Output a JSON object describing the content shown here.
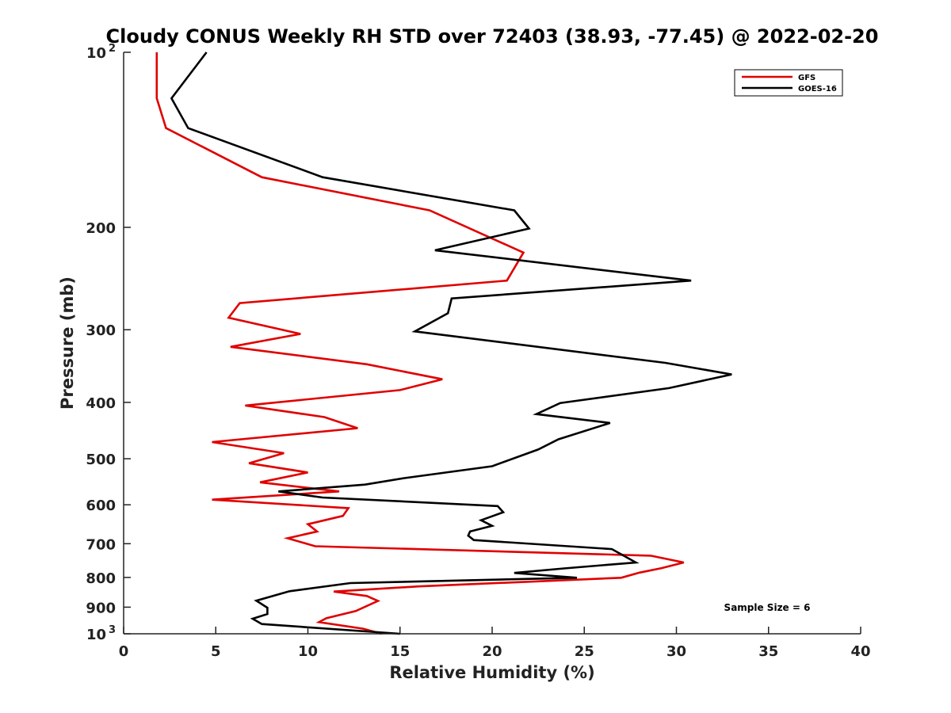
{
  "chart_data": {
    "type": "line",
    "title": "Cloudy CONUS Weekly RH STD over 72403 (38.93, -77.45) @ 2022-02-20",
    "xlabel": "Relative Humidity (%)",
    "ylabel": "Pressure (mb)",
    "xlim": [
      0,
      40
    ],
    "ylim": [
      100,
      1000
    ],
    "y_scale": "log",
    "y_reversed": true,
    "grid": false,
    "legend_position": "top-right",
    "x_ticks": [
      "0",
      "5",
      "10",
      "15",
      "20",
      "25",
      "30",
      "35",
      "40"
    ],
    "y_ticks": [
      {
        "value": 100,
        "base": "10",
        "exp": "2"
      },
      {
        "value": 200,
        "label": "200"
      },
      {
        "value": 300,
        "label": "300"
      },
      {
        "value": 400,
        "label": "400"
      },
      {
        "value": 500,
        "label": "500"
      },
      {
        "value": 600,
        "label": "600"
      },
      {
        "value": 700,
        "label": "700"
      },
      {
        "value": 800,
        "label": "800"
      },
      {
        "value": 900,
        "label": "900"
      },
      {
        "value": 1000,
        "base": "10",
        "exp": "3"
      }
    ],
    "series": [
      {
        "name": "GFS",
        "color": "#e00000",
        "points": [
          [
            1.8,
            100
          ],
          [
            1.8,
            120
          ],
          [
            2.3,
            135
          ],
          [
            7.5,
            164
          ],
          [
            16.6,
            187
          ],
          [
            19.7,
            207
          ],
          [
            21.7,
            221
          ],
          [
            20.8,
            247
          ],
          [
            6.3,
            270
          ],
          [
            5.7,
            286
          ],
          [
            9.6,
            305
          ],
          [
            5.8,
            321
          ],
          [
            13.2,
            344
          ],
          [
            17.3,
            365
          ],
          [
            15.0,
            381
          ],
          [
            6.6,
            405
          ],
          [
            10.9,
            424
          ],
          [
            12.7,
            443
          ],
          [
            4.8,
            468
          ],
          [
            8.7,
            489
          ],
          [
            6.8,
            509
          ],
          [
            10.0,
            528
          ],
          [
            7.4,
            549
          ],
          [
            11.7,
            569
          ],
          [
            4.8,
            588
          ],
          [
            12.2,
            608
          ],
          [
            11.9,
            627
          ],
          [
            10.0,
            648
          ],
          [
            10.5,
            667
          ],
          [
            8.9,
            685
          ],
          [
            10.4,
            707
          ],
          [
            28.6,
            734
          ],
          [
            30.4,
            754
          ],
          [
            29.2,
            771
          ],
          [
            28.0,
            785
          ],
          [
            27.0,
            801
          ],
          [
            16.0,
            829
          ],
          [
            11.4,
            846
          ],
          [
            13.2,
            861
          ],
          [
            13.8,
            878
          ],
          [
            12.6,
            914
          ],
          [
            11.0,
            940
          ],
          [
            10.6,
            955
          ],
          [
            13.0,
            980
          ],
          [
            14.0,
            1000
          ]
        ]
      },
      {
        "name": "GOES-16",
        "color": "#000000",
        "points": [
          [
            4.5,
            100
          ],
          [
            2.6,
            120
          ],
          [
            3.5,
            135
          ],
          [
            10.8,
            164
          ],
          [
            21.2,
            187
          ],
          [
            22.0,
            201
          ],
          [
            16.9,
            219
          ],
          [
            30.8,
            247
          ],
          [
            17.8,
            265
          ],
          [
            17.6,
            281
          ],
          [
            15.8,
            302
          ],
          [
            29.4,
            342
          ],
          [
            33.0,
            358
          ],
          [
            29.6,
            378
          ],
          [
            23.7,
            401
          ],
          [
            22.4,
            419
          ],
          [
            26.4,
            434
          ],
          [
            23.6,
            463
          ],
          [
            22.5,
            482
          ],
          [
            20.0,
            515
          ],
          [
            15.2,
            540
          ],
          [
            13.1,
            554
          ],
          [
            8.4,
            569
          ],
          [
            10.8,
            583
          ],
          [
            20.3,
            603
          ],
          [
            20.6,
            618
          ],
          [
            19.4,
            638
          ],
          [
            20.0,
            652
          ],
          [
            18.8,
            667
          ],
          [
            18.7,
            678
          ],
          [
            19.0,
            690
          ],
          [
            26.5,
            715
          ],
          [
            27.8,
            754
          ],
          [
            23.9,
            772
          ],
          [
            21.2,
            786
          ],
          [
            24.6,
            801
          ],
          [
            12.3,
            818
          ],
          [
            9.0,
            845
          ],
          [
            7.2,
            877
          ],
          [
            7.8,
            902
          ],
          [
            7.8,
            925
          ],
          [
            7.0,
            942
          ],
          [
            7.5,
            962
          ],
          [
            15.0,
            1000
          ]
        ]
      }
    ],
    "annotation": "Sample Size = 6"
  }
}
